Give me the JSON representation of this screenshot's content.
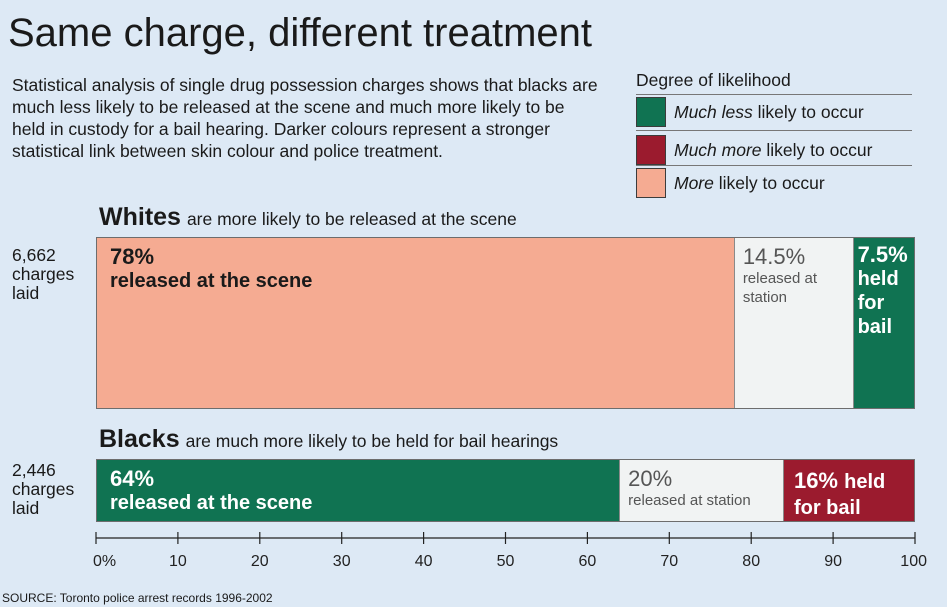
{
  "title": "Same charge, different treatment",
  "description": "Statistical analysis of single drug possession charges shows that blacks are much less likely to be released at the scene and much more likely to be held in custody for a bail hearing. Darker colours represent a stronger statistical link between skin colour and police treatment.",
  "legend": {
    "title": "Degree of likelihood",
    "items": [
      {
        "emph": "Much less",
        "rest": " likely to occur",
        "color": "#107352"
      },
      {
        "emph": "Much more",
        "rest": " likely to occur",
        "color": "#9b1b2e"
      },
      {
        "emph": "More",
        "rest": " likely to occur",
        "color": "#f5ab92"
      }
    ]
  },
  "chart_data": {
    "type": "bar",
    "orientation": "horizontal",
    "stacked": true,
    "title": "Same charge, different treatment",
    "xlim": [
      0,
      100
    ],
    "x_ticks": [
      0,
      10,
      20,
      30,
      40,
      50,
      60,
      70,
      80,
      90,
      100
    ],
    "x_tick_labels": [
      "0%",
      "10",
      "20",
      "30",
      "40",
      "50",
      "60",
      "70",
      "80",
      "90",
      "100"
    ],
    "groups": [
      {
        "name": "Whites",
        "headline": "are more likely to be released at the scene",
        "count_lines": [
          "6,662",
          "charges",
          "laid"
        ],
        "segments": [
          {
            "value": 78,
            "pct": "78%",
            "label": "released at the scene",
            "color": "#f5ab92",
            "text_color": "#1a1a1a"
          },
          {
            "value": 14.5,
            "pct": "14.5%",
            "label": "released at station",
            "color": "#f1f3f3",
            "text_color": "#555555"
          },
          {
            "value": 7.5,
            "pct": "7.5%",
            "label": "held for bail",
            "color": "#107352",
            "text_color": "#ffffff"
          }
        ]
      },
      {
        "name": "Blacks",
        "headline": "are much more likely to be held for bail hearings",
        "count_lines": [
          "2,446",
          "charges",
          "laid"
        ],
        "segments": [
          {
            "value": 64,
            "pct": "64%",
            "label": "released at the scene",
            "color": "#107352",
            "text_color": "#ffffff"
          },
          {
            "value": 20,
            "pct": "20%",
            "label": "released at station",
            "color": "#f1f3f3",
            "text_color": "#555555"
          },
          {
            "value": 16,
            "pct": "16%",
            "label": "held for bail",
            "color": "#9b1b2e",
            "text_color": "#ffffff"
          }
        ]
      }
    ]
  },
  "source": "SOURCE: Toronto police arrest records 1996-2002"
}
